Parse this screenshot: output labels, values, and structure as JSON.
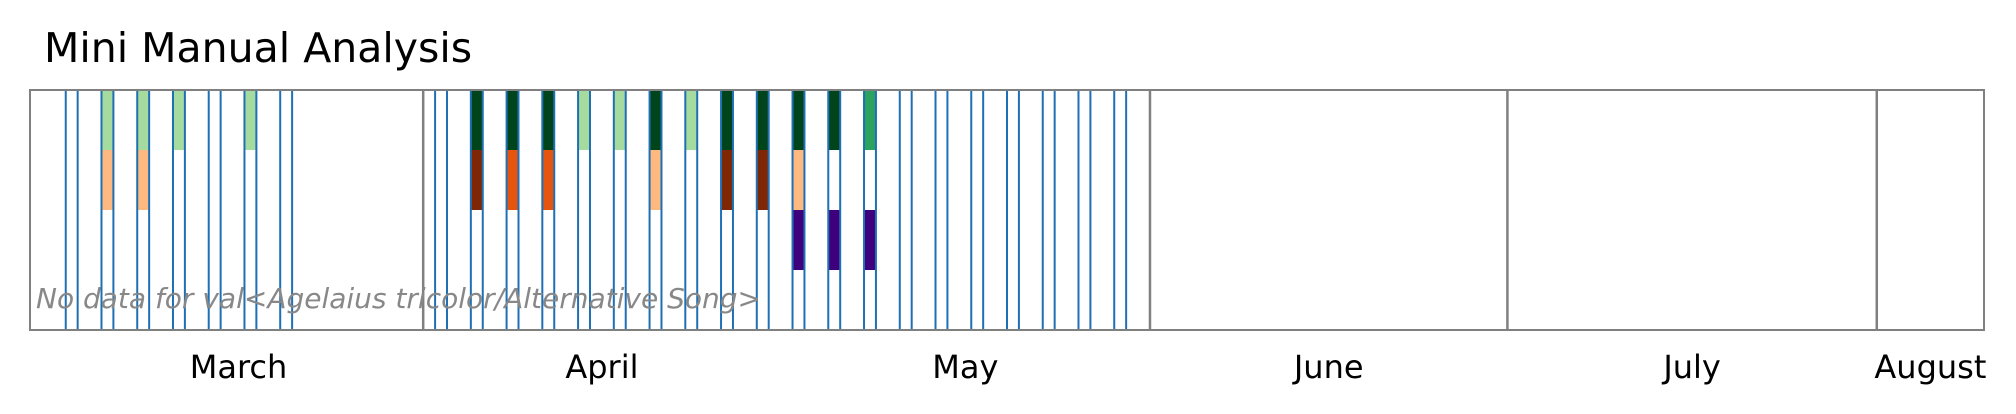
{
  "chart_data": {
    "type": "heatmap",
    "title": "Mini Manual Analysis",
    "xaxis": {
      "type": "date",
      "range": [
        "2016-02-28",
        "2016-08-10"
      ],
      "month_ticks": [
        {
          "label": "March",
          "start": "2016-03-01",
          "end": "2016-04-01"
        },
        {
          "label": "April",
          "start": "2016-04-01",
          "end": "2016-05-01"
        },
        {
          "label": "May",
          "start": "2016-05-01",
          "end": "2016-06-01"
        },
        {
          "label": "June",
          "start": "2016-06-01",
          "end": "2016-07-01"
        },
        {
          "label": "July",
          "start": "2016-07-01",
          "end": "2016-08-01"
        },
        {
          "label": "August",
          "start": "2016-08-01",
          "end": "2016-08-10"
        }
      ],
      "month_boundaries": [
        "2016-04-01",
        "2016-06-01",
        "2016-07-01",
        "2016-08-01"
      ]
    },
    "recording_dates": [
      "2016-03-02",
      "2016-03-03",
      "2016-03-05",
      "2016-03-06",
      "2016-03-08",
      "2016-03-09",
      "2016-03-11",
      "2016-03-12",
      "2016-03-14",
      "2016-03-15",
      "2016-03-17",
      "2016-03-18",
      "2016-03-20",
      "2016-03-21",
      "2016-04-02",
      "2016-04-03",
      "2016-04-05",
      "2016-04-06",
      "2016-04-08",
      "2016-04-09",
      "2016-04-11",
      "2016-04-12",
      "2016-04-14",
      "2016-04-15",
      "2016-04-17",
      "2016-04-18",
      "2016-04-20",
      "2016-04-21",
      "2016-04-23",
      "2016-04-24",
      "2016-04-26",
      "2016-04-27",
      "2016-04-29",
      "2016-04-30",
      "2016-05-02",
      "2016-05-03",
      "2016-05-05",
      "2016-05-06",
      "2016-05-08",
      "2016-05-09",
      "2016-05-11",
      "2016-05-12",
      "2016-05-14",
      "2016-05-15",
      "2016-05-17",
      "2016-05-18",
      "2016-05-20",
      "2016-05-21",
      "2016-05-23",
      "2016-05-24",
      "2016-05-26",
      "2016-05-27",
      "2016-05-29",
      "2016-05-30"
    ],
    "rows": [
      "row1",
      "row2",
      "row3",
      "row4"
    ],
    "cells": [
      {
        "date": "2016-03-05",
        "levels": [
          1,
          1,
          0,
          0
        ]
      },
      {
        "date": "2016-03-08",
        "levels": [
          1,
          1,
          0,
          0
        ]
      },
      {
        "date": "2016-03-11",
        "levels": [
          1,
          0,
          0,
          0
        ]
      },
      {
        "date": "2016-03-17",
        "levels": [
          1,
          0,
          0,
          0
        ]
      },
      {
        "date": "2016-04-05",
        "levels": [
          4,
          4,
          0,
          0
        ]
      },
      {
        "date": "2016-04-08",
        "levels": [
          4,
          2,
          0,
          0
        ]
      },
      {
        "date": "2016-04-11",
        "levels": [
          4,
          2,
          0,
          0
        ]
      },
      {
        "date": "2016-04-14",
        "levels": [
          1,
          0,
          0,
          0
        ]
      },
      {
        "date": "2016-04-17",
        "levels": [
          1,
          0,
          0,
          0
        ]
      },
      {
        "date": "2016-04-20",
        "levels": [
          4,
          1,
          0,
          0
        ]
      },
      {
        "date": "2016-04-23",
        "levels": [
          1,
          0,
          0,
          0
        ]
      },
      {
        "date": "2016-04-26",
        "levels": [
          4,
          4,
          0,
          0
        ]
      },
      {
        "date": "2016-04-29",
        "levels": [
          4,
          4,
          0,
          0
        ]
      },
      {
        "date": "2016-05-02",
        "levels": [
          4,
          1,
          4,
          0
        ]
      },
      {
        "date": "2016-05-05",
        "levels": [
          4,
          0,
          4,
          0
        ]
      },
      {
        "date": "2016-05-08",
        "levels": [
          3,
          0,
          4,
          0
        ]
      }
    ],
    "colormaps": [
      [
        "#a6dba0",
        "#41ab5d",
        "#2ca25f",
        "#00441b"
      ],
      [
        "#fdb97f",
        "#e6550d",
        "#e6550d",
        "#7f2704"
      ],
      [
        "#9e9ac8",
        "#6a51a3",
        "#54278f",
        "#3f007d"
      ],
      [
        "#9ecae1",
        "#4292c6",
        "#2171b5",
        "#08306b"
      ]
    ],
    "recording_line_color": "#1f6fb4",
    "boundary_color": "#808080",
    "grid": false,
    "annotation": "No data for val<Agelaius tricolor/Alternative Song>"
  }
}
